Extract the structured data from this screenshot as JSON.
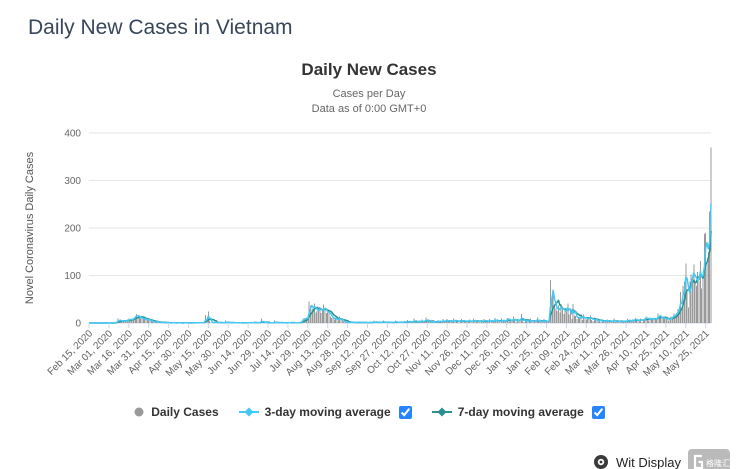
{
  "header": {
    "title": "Daily New Cases in Vietnam"
  },
  "watermark": {
    "label": "Wit Display",
    "logo_text": "格隆汇"
  },
  "chart_data": {
    "type": "bar",
    "title": "Daily New Cases",
    "subtitle": "Cases per Day",
    "data_note": "Data as of 0:00 GMT+0",
    "ylabel": "Novel Coronavirus Daily Cases",
    "xlabel": "",
    "ylim": [
      0,
      400
    ],
    "yticks": [
      0,
      100,
      200,
      300,
      400
    ],
    "grid": true,
    "legend_position": "bottom",
    "x_start": "Feb 15, 2020",
    "x_tick_interval_days": 15,
    "x_tick_labels": [
      "Feb 15, 2020",
      "Mar 01, 2020",
      "Mar 16, 2020",
      "Mar 31, 2020",
      "Apr 15, 2020",
      "Apr 30, 2020",
      "May 15, 2020",
      "May 30, 2020",
      "Jun 14, 2020",
      "Jun 29, 2020",
      "Jul 14, 2020",
      "Jul 29, 2020",
      "Aug 13, 2020",
      "Aug 28, 2020",
      "Sep 12, 2020",
      "Sep 27, 2020",
      "Oct 12, 2020",
      "Oct 27, 2020",
      "Nov 11, 2020",
      "Nov 26, 2020",
      "Dec 11, 2020",
      "Dec 26, 2020",
      "Jan 10, 2021",
      "Jan 25, 2021",
      "Feb 09, 2021",
      "Feb 24, 2021",
      "Mar 11, 2021",
      "Mar 26, 2021",
      "Apr 10, 2021",
      "Apr 25, 2021",
      "May 10, 2021",
      "May 25, 2021"
    ],
    "series": [
      {
        "name": "Daily Cases",
        "type": "column",
        "color": "#999999",
        "values": [
          0,
          0,
          0,
          0,
          0,
          0,
          0,
          0,
          0,
          0,
          0,
          0,
          0,
          0,
          0,
          0,
          0,
          0,
          0,
          0,
          1,
          3,
          9,
          4,
          4,
          5,
          4,
          3,
          5,
          7,
          9,
          4,
          9,
          9,
          11,
          15,
          19,
          11,
          14,
          9,
          11,
          9,
          8,
          6,
          9,
          5,
          6,
          4,
          3,
          1,
          2,
          4,
          2,
          1,
          2,
          1,
          0,
          0,
          1,
          2,
          0,
          0,
          0,
          1,
          0,
          0,
          0,
          2,
          0,
          0,
          0,
          0,
          1,
          0,
          0,
          0,
          0,
          0,
          1,
          0,
          0,
          2,
          0,
          0,
          1,
          0,
          0,
          3,
          17,
          2,
          24,
          4,
          1,
          0,
          1,
          3,
          0,
          0,
          2,
          0,
          1,
          0,
          0,
          5,
          0,
          1,
          0,
          1,
          0,
          0,
          2,
          0,
          0,
          1,
          0,
          0,
          0,
          1,
          0,
          0,
          2,
          0,
          1,
          0,
          0,
          3,
          0,
          0,
          1,
          0,
          9,
          0,
          0,
          1,
          0,
          0,
          0,
          2,
          0,
          0,
          5,
          0,
          0,
          1,
          0,
          0,
          2,
          0,
          0,
          0,
          1,
          0,
          0,
          3,
          0,
          0,
          1,
          0,
          0,
          2,
          2,
          7,
          11,
          7,
          12,
          9,
          45,
          37,
          28,
          34,
          41,
          22,
          25,
          30,
          34,
          21,
          25,
          39,
          29,
          21,
          22,
          25,
          14,
          11,
          12,
          7,
          11,
          6,
          5,
          14,
          7,
          5,
          2,
          4,
          1,
          2,
          0,
          1,
          3,
          0,
          2,
          0,
          1,
          0,
          3,
          0,
          1,
          2,
          0,
          1,
          1,
          0,
          3,
          0,
          1,
          5,
          0,
          2,
          0,
          1,
          3,
          0,
          5,
          1,
          0,
          2,
          0,
          3,
          1,
          0,
          2,
          5,
          0,
          1,
          3,
          0,
          2,
          1,
          4,
          0,
          6,
          1,
          3,
          0,
          2,
          9,
          1,
          3,
          0,
          5,
          2,
          7,
          1,
          3,
          12,
          3,
          4,
          1,
          2,
          5,
          0,
          3,
          1,
          6,
          2,
          4,
          1,
          8,
          2,
          3,
          8,
          2,
          5,
          1,
          3,
          10,
          2,
          4,
          6,
          1,
          3,
          8,
          2,
          5,
          3,
          5,
          2,
          7,
          3,
          1,
          10,
          4,
          2,
          6,
          3,
          1,
          5,
          2,
          8,
          3,
          4,
          2,
          8,
          1,
          5,
          3,
          11,
          2,
          6,
          4,
          1,
          9,
          3,
          5,
          2,
          9,
          11,
          3,
          6,
          2,
          14,
          5,
          3,
          8,
          2,
          6,
          19,
          4,
          2,
          7,
          3,
          5,
          2,
          9,
          3,
          1,
          6,
          2,
          12,
          3,
          2,
          5,
          1,
          8,
          2,
          4,
          2,
          9,
          91,
          54,
          61,
          36,
          31,
          25,
          37,
          22,
          40,
          30,
          19,
          32,
          24,
          41,
          18,
          31,
          8,
          40,
          16,
          15,
          8,
          11,
          12,
          15,
          6,
          18,
          9,
          7,
          11,
          8,
          16,
          6,
          4,
          12,
          5,
          7,
          3,
          8,
          2,
          5,
          3,
          6,
          2,
          7,
          3,
          5,
          1,
          4,
          9,
          2,
          3,
          6,
          1,
          2,
          5,
          3,
          4,
          2,
          9,
          3,
          6,
          2,
          8,
          4,
          11,
          5,
          3,
          7,
          10,
          2,
          6,
          9,
          14,
          8,
          5,
          12,
          7,
          9,
          10,
          8,
          6,
          20,
          15,
          11,
          9,
          13,
          8,
          10,
          10,
          5,
          8,
          14,
          10,
          20,
          14,
          21,
          30,
          26,
          65,
          32,
          78,
          87,
          125,
          70,
          33,
          87,
          102,
          92,
          123,
          86,
          78,
          107,
          88,
          131,
          73,
          95,
          187,
          190,
          130,
          150,
          235,
          370
        ]
      },
      {
        "name": "3-day moving average",
        "type": "line",
        "color": "#44c8f5",
        "derived_from": "Daily Cases",
        "window": 3
      },
      {
        "name": "7-day moving average",
        "type": "line",
        "color": "#2b908f",
        "derived_from": "Daily Cases",
        "window": 7
      }
    ]
  }
}
